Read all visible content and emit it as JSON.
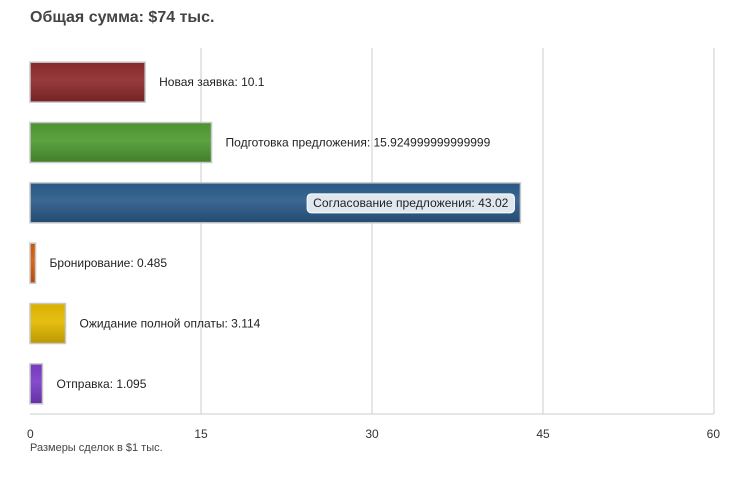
{
  "title": "Общая сумма: $74 тыс.",
  "footnote": "Размеры сделок в $1 тыс.",
  "chart_data": {
    "type": "bar",
    "orientation": "horizontal",
    "categories": [
      "Новая заявка",
      "Подготовка предложения",
      "Согласование предложения",
      "Бронирование",
      "Ожидание полной оплаты",
      "Отправка"
    ],
    "values": [
      10.1,
      15.924999999999999,
      43.02,
      0.485,
      3.114,
      1.095
    ],
    "data_labels": [
      "Новая заявка: 10.1",
      "Подготовка предложения: 15.924999999999999",
      "Согласование предложения: 43.02",
      "Бронирование: 0.485",
      "Ожидание полной оплаты: 3.114",
      "Отправка: 1.095"
    ],
    "colors": [
      "#8e2a2c",
      "#4f9a32",
      "#2b5a8a",
      "#d35a0e",
      "#e3b900",
      "#7a3cc7"
    ],
    "xlim": [
      0,
      60
    ],
    "ticks": [
      0,
      15,
      30,
      45,
      60
    ],
    "tick_labels": [
      "0",
      "15",
      "30",
      "45",
      "60"
    ],
    "grid": true,
    "highlighted_index": 2
  }
}
